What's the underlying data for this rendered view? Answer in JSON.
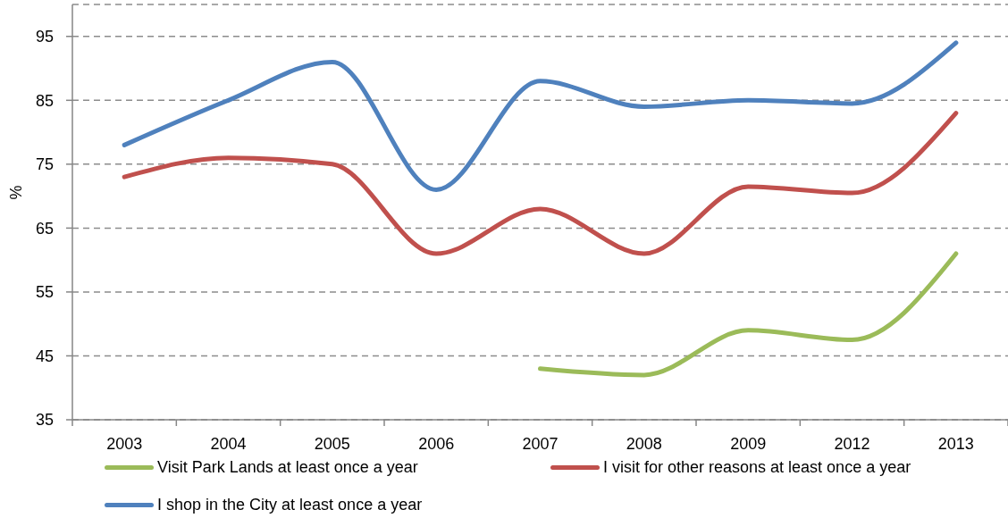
{
  "chart_data": {
    "type": "line",
    "ylabel": "%",
    "categories": [
      "2003",
      "2004",
      "2005",
      "2006",
      "2007",
      "2008",
      "2009",
      "2012",
      "2013"
    ],
    "series": [
      {
        "name": "Visit Park Lands at least once a year",
        "color": "#9bbb59",
        "values": [
          null,
          null,
          null,
          null,
          43,
          42,
          49,
          47.5,
          61
        ]
      },
      {
        "name": "I visit for other reasons at least once a year",
        "color": "#c0504d",
        "values": [
          73,
          76,
          75,
          61,
          68,
          61,
          71.5,
          70.5,
          83
        ]
      },
      {
        "name": "I shop in the City at least once a year",
        "color": "#4f81bd",
        "values": [
          78,
          85,
          91,
          71,
          88,
          84,
          85,
          84.5,
          94
        ]
      }
    ],
    "ylim": [
      35,
      100
    ],
    "yticks": [
      35,
      45,
      55,
      65,
      75,
      85,
      95
    ],
    "grid": "y",
    "legend": "bottom",
    "marker": "none",
    "line_style": "solid"
  }
}
